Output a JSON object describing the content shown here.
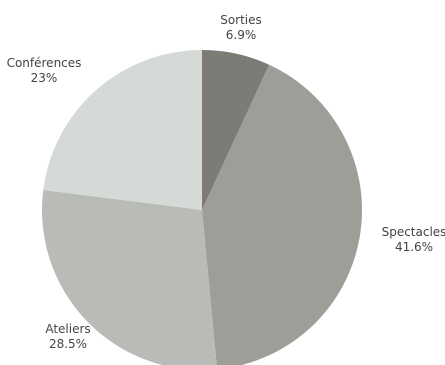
{
  "chart_data": {
    "type": "pie",
    "title": "",
    "slices": [
      {
        "label": "Sorties",
        "value": 6.9,
        "display": "6.9%",
        "color": "#7d7b75"
      },
      {
        "label": "Spectacles",
        "value": 41.6,
        "display": "41.6%",
        "color": "#9e9d98"
      },
      {
        "label": "Ateliers",
        "value": 28.5,
        "display": "28.5%",
        "color": "#b9bcb6"
      },
      {
        "label": "Conférences",
        "value": 23,
        "display": "23%",
        "color": "#d6dad6"
      }
    ],
    "start_angle": "12 o'clock",
    "direction": "clockwise",
    "legend": "none"
  }
}
